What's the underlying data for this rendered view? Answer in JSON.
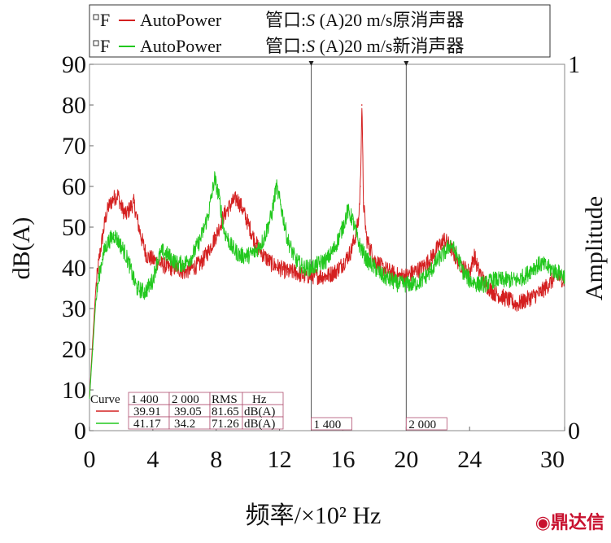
{
  "legend": {
    "items": [
      {
        "marker": "F",
        "name": "AutoPower",
        "desc_pre": "管口:",
        "desc_italic": "S",
        "desc_post": " (A)20 m/s原消声器",
        "color": "#d42020"
      },
      {
        "marker": "F",
        "name": "AutoPower",
        "desc_pre": "管口:",
        "desc_italic": "S",
        "desc_post": " (A)20 m/s新消声器",
        "color": "#22c81e"
      }
    ]
  },
  "cursor_table": {
    "header": [
      "Curve",
      "1 400",
      "2 000",
      "RMS",
      "Hz"
    ],
    "rows": [
      {
        "color": "#d42020",
        "v1": "39.91",
        "v2": "39.05",
        "rms": "81.65",
        "unit": "dB(A)"
      },
      {
        "color": "#22c81e",
        "v1": "41.17",
        "v2": "34.2",
        "rms": "71.26",
        "unit": "dB(A)"
      }
    ]
  },
  "cursors": [
    {
      "label": "1 400",
      "x": 14
    },
    {
      "label": "2 000",
      "x": 20
    }
  ],
  "watermark": "鼎达信",
  "chart_data": {
    "type": "line",
    "xlabel": "频率/×10² Hz",
    "ylabel": "dB(A)",
    "y2label": "Amplitude",
    "xlim": [
      0,
      30
    ],
    "ylim": [
      0,
      90
    ],
    "y2lim": [
      0,
      1
    ],
    "xticks": [
      "0",
      "4",
      "8",
      "12",
      "16",
      "20",
      "24",
      "30"
    ],
    "xtick_values": [
      0,
      4,
      8,
      12,
      16,
      20,
      24,
      30
    ],
    "yticks": [
      "0",
      "10",
      "20",
      "30",
      "40",
      "50",
      "60",
      "70",
      "80",
      "90"
    ],
    "ytick_values": [
      0,
      10,
      20,
      30,
      40,
      50,
      60,
      70,
      80,
      90
    ],
    "y2ticks": [
      "0",
      "1"
    ],
    "y2tick_values": [
      0,
      1
    ],
    "grid": false,
    "series": [
      {
        "name": "AutoPower 管口:S (A)20 m/s原消声器",
        "color": "#d42020",
        "points": [
          [
            0,
            8
          ],
          [
            0.2,
            22
          ],
          [
            0.4,
            35
          ],
          [
            0.6,
            42
          ],
          [
            0.8,
            47
          ],
          [
            1.0,
            52
          ],
          [
            1.2,
            55
          ],
          [
            1.5,
            57
          ],
          [
            1.8,
            58
          ],
          [
            2.0,
            55
          ],
          [
            2.3,
            53
          ],
          [
            2.6,
            55
          ],
          [
            2.8,
            56
          ],
          [
            3.0,
            52
          ],
          [
            3.3,
            47
          ],
          [
            3.6,
            43
          ],
          [
            4.0,
            42
          ],
          [
            4.5,
            41
          ],
          [
            5.0,
            40
          ],
          [
            5.5,
            40
          ],
          [
            6.0,
            39
          ],
          [
            6.5,
            40
          ],
          [
            7.0,
            41
          ],
          [
            7.5,
            44
          ],
          [
            8.0,
            48
          ],
          [
            8.5,
            53
          ],
          [
            9.0,
            56
          ],
          [
            9.3,
            57
          ],
          [
            9.6,
            55
          ],
          [
            10.0,
            51
          ],
          [
            10.5,
            46
          ],
          [
            11.0,
            43
          ],
          [
            11.5,
            41
          ],
          [
            12.0,
            40
          ],
          [
            12.5,
            39
          ],
          [
            13.0,
            39
          ],
          [
            13.5,
            38
          ],
          [
            14.0,
            38
          ],
          [
            14.5,
            38
          ],
          [
            15.0,
            38
          ],
          [
            15.5,
            39
          ],
          [
            16.0,
            41
          ],
          [
            16.5,
            44
          ],
          [
            16.8,
            48
          ],
          [
            17.0,
            52
          ],
          [
            17.1,
            60
          ],
          [
            17.2,
            80
          ],
          [
            17.3,
            56
          ],
          [
            17.5,
            47
          ],
          [
            18.0,
            42
          ],
          [
            18.5,
            40
          ],
          [
            19.0,
            39
          ],
          [
            19.5,
            38
          ],
          [
            20.0,
            38
          ],
          [
            20.5,
            39
          ],
          [
            21.0,
            40
          ],
          [
            21.5,
            42
          ],
          [
            22.0,
            45
          ],
          [
            22.4,
            47
          ],
          [
            22.8,
            45
          ],
          [
            23.2,
            42
          ],
          [
            23.6,
            40
          ],
          [
            24.0,
            39
          ],
          [
            24.3,
            43
          ],
          [
            24.5,
            40
          ],
          [
            25.0,
            36
          ],
          [
            25.5,
            34
          ],
          [
            26.0,
            33
          ],
          [
            26.5,
            32
          ],
          [
            27.0,
            31
          ],
          [
            27.5,
            32
          ],
          [
            28.0,
            33
          ],
          [
            28.5,
            34
          ],
          [
            29.0,
            36
          ],
          [
            29.5,
            38
          ],
          [
            30.0,
            37
          ]
        ]
      },
      {
        "name": "AutoPower 管口:S (A)20 m/s新消声器",
        "color": "#22c81e",
        "points": [
          [
            0,
            8
          ],
          [
            0.2,
            20
          ],
          [
            0.4,
            32
          ],
          [
            0.6,
            38
          ],
          [
            0.8,
            42
          ],
          [
            1.0,
            45
          ],
          [
            1.3,
            47
          ],
          [
            1.6,
            48
          ],
          [
            1.9,
            46
          ],
          [
            2.2,
            44
          ],
          [
            2.5,
            41
          ],
          [
            2.8,
            37
          ],
          [
            3.0,
            35
          ],
          [
            3.5,
            34
          ],
          [
            4.0,
            37
          ],
          [
            4.3,
            42
          ],
          [
            4.6,
            44
          ],
          [
            5.0,
            43
          ],
          [
            5.5,
            41
          ],
          [
            6.0,
            41
          ],
          [
            6.5,
            43
          ],
          [
            7.0,
            47
          ],
          [
            7.5,
            53
          ],
          [
            7.9,
            62
          ],
          [
            8.2,
            57
          ],
          [
            8.5,
            49
          ],
          [
            9.0,
            45
          ],
          [
            9.5,
            43
          ],
          [
            10.0,
            43
          ],
          [
            10.5,
            44
          ],
          [
            11.0,
            47
          ],
          [
            11.5,
            53
          ],
          [
            11.8,
            60
          ],
          [
            12.1,
            55
          ],
          [
            12.5,
            47
          ],
          [
            13.0,
            42
          ],
          [
            13.5,
            40
          ],
          [
            14.0,
            40
          ],
          [
            14.5,
            41
          ],
          [
            15.0,
            42
          ],
          [
            15.5,
            45
          ],
          [
            16.0,
            50
          ],
          [
            16.3,
            54
          ],
          [
            16.6,
            52
          ],
          [
            17.0,
            46
          ],
          [
            17.5,
            42
          ],
          [
            18.0,
            40
          ],
          [
            18.5,
            38
          ],
          [
            19.0,
            37
          ],
          [
            19.5,
            36
          ],
          [
            20.0,
            36
          ],
          [
            20.5,
            36
          ],
          [
            21.0,
            37
          ],
          [
            21.5,
            39
          ],
          [
            22.0,
            42
          ],
          [
            22.5,
            44
          ],
          [
            22.8,
            46
          ],
          [
            23.2,
            43
          ],
          [
            23.6,
            39
          ],
          [
            24.0,
            37
          ],
          [
            24.5,
            36
          ],
          [
            25.0,
            36
          ],
          [
            25.5,
            37
          ],
          [
            26.0,
            37
          ],
          [
            26.5,
            37
          ],
          [
            27.0,
            37
          ],
          [
            27.5,
            38
          ],
          [
            28.0,
            40
          ],
          [
            28.5,
            41
          ],
          [
            29.0,
            40
          ],
          [
            29.5,
            39
          ],
          [
            30.0,
            38
          ]
        ]
      }
    ]
  }
}
